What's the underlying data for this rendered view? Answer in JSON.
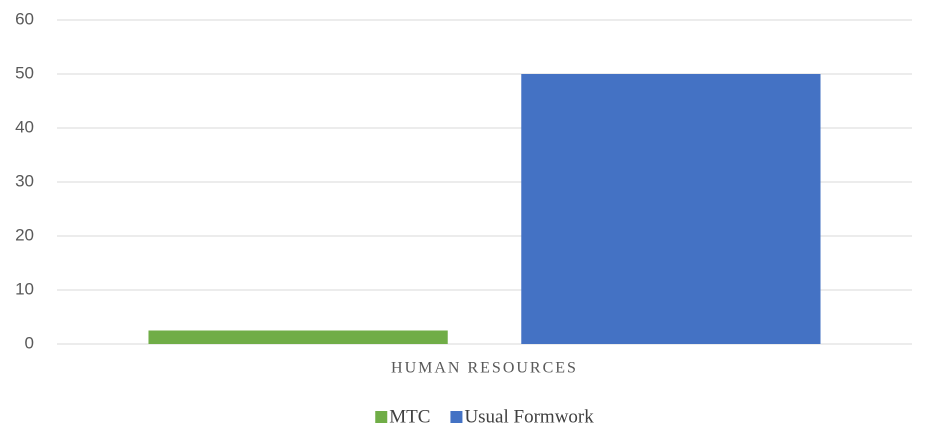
{
  "chart_data": {
    "type": "bar",
    "categories": [
      "HUMAN RESOURCES"
    ],
    "series": [
      {
        "name": "MTC",
        "color": "#70ad47",
        "values": [
          2.5
        ]
      },
      {
        "name": "Usual Formwork",
        "color": "#4472c4",
        "values": [
          50
        ]
      }
    ],
    "ylim": [
      0,
      60
    ],
    "yticks": [
      0,
      10,
      20,
      30,
      40,
      50,
      60
    ],
    "grid": true,
    "legend": "bottom"
  }
}
